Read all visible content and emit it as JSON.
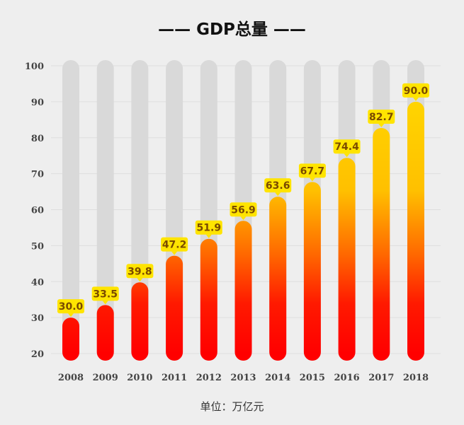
{
  "title": "—— GDP总量 ——",
  "unit": "单位：万亿元",
  "colors": {
    "background": "#eeeeee",
    "track": "#d9d9d9",
    "gradient_top": "#ffd400",
    "gradient_mid": "#ff7a00",
    "gradient_bottom": "#ff0a00",
    "label_bg": "#ffe400"
  },
  "chart_data": {
    "type": "bar",
    "title": "GDP总量",
    "xlabel": "",
    "ylabel": "",
    "categories": [
      "2008",
      "2009",
      "2010",
      "2011",
      "2012",
      "2013",
      "2014",
      "2015",
      "2016",
      "2017",
      "2018"
    ],
    "values": [
      30.0,
      33.5,
      39.8,
      47.2,
      51.9,
      56.9,
      63.6,
      67.7,
      74.4,
      82.7,
      90.0
    ],
    "data_labels": [
      "30.0",
      "33.5",
      "39.8",
      "47.2",
      "51.9",
      "56.9",
      "63.6",
      "67.7",
      "74.4",
      "82.7",
      "90.0"
    ],
    "ylim": [
      20,
      100
    ],
    "yticks": [
      "100",
      "90",
      "80",
      "70",
      "60",
      "50",
      "40",
      "30",
      "20"
    ],
    "grid": true,
    "unit": "万亿元"
  }
}
